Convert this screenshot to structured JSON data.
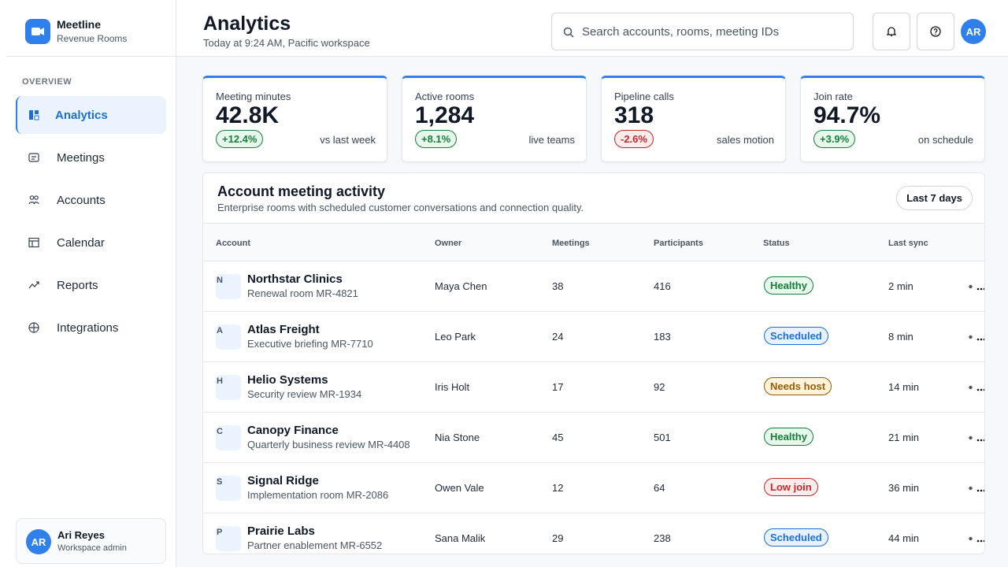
{
  "brand": {
    "name": "Meetline",
    "subtitle": "Revenue Rooms"
  },
  "nav": {
    "section": "OVERVIEW",
    "active": 0,
    "items": [
      "Analytics",
      "Meetings",
      "Accounts",
      "Calendar",
      "Reports",
      "Integrations"
    ]
  },
  "user": {
    "initials": "AR",
    "name": "Ari Reyes",
    "role": "Workspace admin"
  },
  "header": {
    "title": "Analytics",
    "subtitle": "Today at 9:24 AM, Pacific workspace",
    "search_placeholder": "Search accounts, rooms, meeting IDs",
    "avatar": "AR"
  },
  "kpis": [
    {
      "label": "Meeting minutes",
      "value": "42.8K",
      "delta": "+12.4%",
      "note": "vs last week",
      "tone": "green"
    },
    {
      "label": "Active rooms",
      "value": "1,284",
      "delta": "+8.1%",
      "note": "live teams",
      "tone": "green"
    },
    {
      "label": "Pipeline calls",
      "value": "318",
      "delta": "-2.6%",
      "note": "sales motion",
      "tone": "red"
    },
    {
      "label": "Join rate",
      "value": "94.7%",
      "delta": "+3.9%",
      "note": "on schedule",
      "tone": "green"
    }
  ],
  "table": {
    "title": "Account meeting activity",
    "subtitle": "Enterprise rooms with scheduled customer conversations and connection quality.",
    "range": "Last 7 days",
    "columns": [
      "Account",
      "Owner",
      "Meetings",
      "Participants",
      "Status",
      "Last sync"
    ],
    "rows": [
      {
        "initial": "N",
        "account": "Northstar Clinics",
        "room": "Renewal room MR-4821",
        "owner": "Maya Chen",
        "meetings": 38,
        "participants": 416,
        "status": "Healthy",
        "tone": "green",
        "sync": "2 min"
      },
      {
        "initial": "A",
        "account": "Atlas Freight",
        "room": "Executive briefing MR-7710",
        "owner": "Leo Park",
        "meetings": 24,
        "participants": 183,
        "status": "Scheduled",
        "tone": "blue",
        "sync": "8 min"
      },
      {
        "initial": "H",
        "account": "Helio Systems",
        "room": "Security review MR-1934",
        "owner": "Iris Holt",
        "meetings": 17,
        "participants": 92,
        "status": "Needs host",
        "tone": "amber",
        "sync": "14 min"
      },
      {
        "initial": "C",
        "account": "Canopy Finance",
        "room": "Quarterly business review MR-4408",
        "owner": "Nia Stone",
        "meetings": 45,
        "participants": 501,
        "status": "Healthy",
        "tone": "green",
        "sync": "21 min"
      },
      {
        "initial": "S",
        "account": "Signal Ridge",
        "room": "Implementation room MR-2086",
        "owner": "Owen Vale",
        "meetings": 12,
        "participants": 64,
        "status": "Low join",
        "tone": "red",
        "sync": "36 min"
      },
      {
        "initial": "P",
        "account": "Prairie Labs",
        "room": "Partner enablement MR-6552",
        "owner": "Sana Malik",
        "meetings": 29,
        "participants": 238,
        "status": "Scheduled",
        "tone": "blue",
        "sync": "44 min"
      }
    ]
  }
}
